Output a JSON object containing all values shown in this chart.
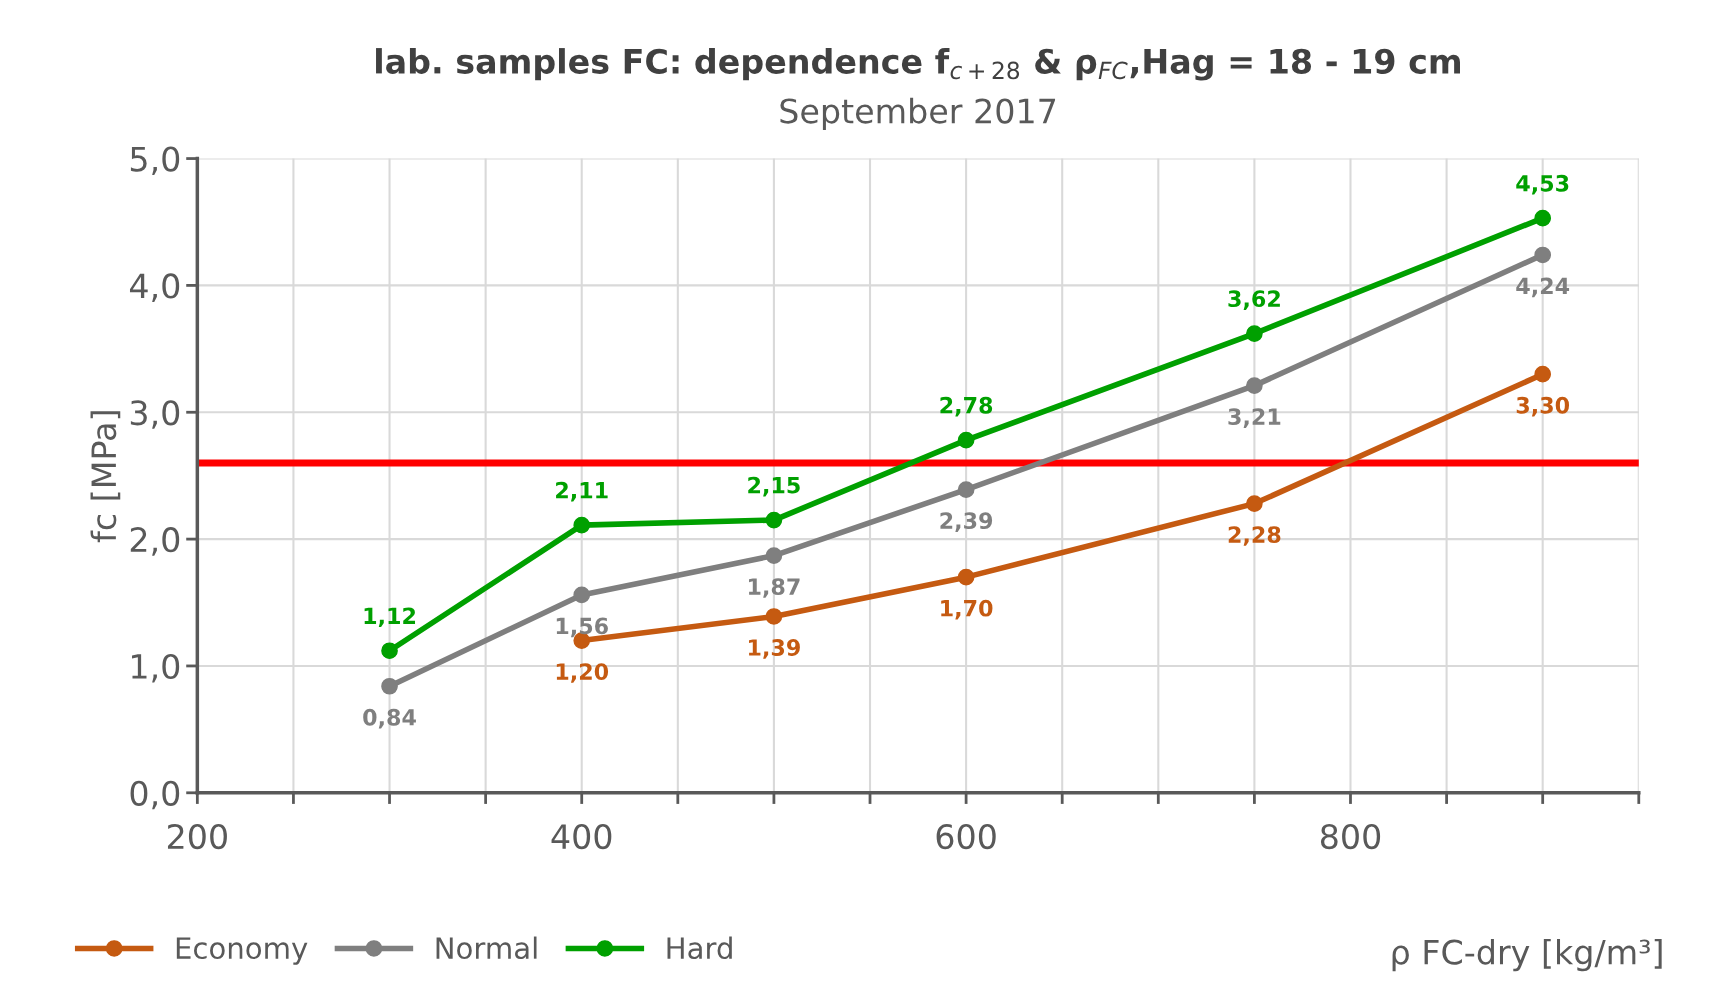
{
  "chart_data": {
    "type": "line",
    "title": "lab. samples FC: dependence f$_{c+28}$ & ρ$_{FC}$,Hag = 18 - 19 cm",
    "subtitle": "September 2017",
    "xlabel": "ρ FC-dry [kg/m³]",
    "ylabel": "fc [MPa]",
    "xlim": [
      200,
      950
    ],
    "xticks": [
      200,
      {
        "value": 250,
        "label": null
      },
      {
        "value": 300,
        "label": null
      },
      {
        "value": 350,
        "label": null
      },
      400,
      {
        "value": 450,
        "label": null
      },
      {
        "value": 500,
        "label": null
      },
      {
        "value": 550,
        "label": null
      },
      600,
      {
        "value": 650,
        "label": null
      },
      {
        "value": 700,
        "label": null
      },
      {
        "value": 750,
        "label": null
      },
      800,
      {
        "value": 850,
        "label": null
      },
      {
        "value": 900,
        "label": null
      },
      {
        "value": 950,
        "label": null
      }
    ],
    "ylim": [
      0,
      5
    ],
    "yticks": [
      {
        "value": 0,
        "label": "0,0"
      },
      {
        "value": 1,
        "label": "1,0"
      },
      {
        "value": 2,
        "label": "2,0"
      },
      {
        "value": 3,
        "label": "3,0"
      },
      {
        "value": 4,
        "label": "4,0"
      },
      {
        "value": 5,
        "label": "5,0"
      }
    ],
    "grid": true,
    "legend": "bottom left",
    "marker": "circle",
    "line_style": "solid",
    "ref_lines": [
      {
        "axis": "y",
        "value": 2.6,
        "color": "#ff0000"
      }
    ],
    "series": [
      {
        "name": "Economy",
        "color": "#c55a11",
        "x": [
          400,
          500,
          600,
          750,
          900
        ],
        "values": [
          1.2,
          1.39,
          1.7,
          2.28,
          3.3
        ],
        "value_labels": [
          "1,20",
          "1,39",
          "1,70",
          "2,28",
          "3,30"
        ]
      },
      {
        "name": "Normal",
        "color": "#7f7f7f",
        "x": [
          300,
          400,
          500,
          600,
          750,
          900
        ],
        "values": [
          0.84,
          1.56,
          1.87,
          2.39,
          3.21,
          4.24
        ],
        "value_labels": [
          "0,84",
          "1,56",
          "1,87",
          "2,39",
          "3,21",
          "4,24"
        ]
      },
      {
        "name": "Hard",
        "color": "#00a000",
        "x": [
          300,
          400,
          500,
          600,
          750,
          900
        ],
        "values": [
          1.12,
          2.11,
          2.15,
          2.78,
          3.62,
          4.53
        ],
        "value_labels": [
          "1,12",
          "2,11",
          "2,15",
          "2,78",
          "3,62",
          "4,53"
        ]
      }
    ]
  }
}
